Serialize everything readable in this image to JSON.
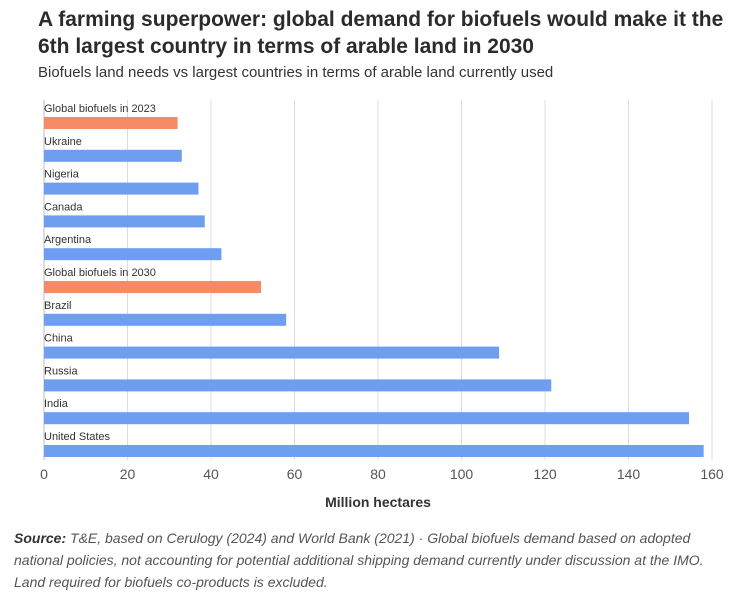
{
  "title": "A farming superpower: global demand for biofuels would make it the 6th largest country in terms of arable land in 2030",
  "subtitle": "Biofuels land needs vs largest countries in terms of arable land currently used",
  "footer": {
    "source_label": "Source:",
    "source_text": "T&E, based on Cerulogy (2024) and World Bank (2021) · Global biofuels demand based on adopted national policies, not accounting for potential additional shipping demand currently under discussion at the IMO. Land required for biofuels co-products is excluded."
  },
  "colors": {
    "country": "#6d9ef0",
    "biofuels": "#f58a65",
    "grid": "#dcdcdc",
    "axis_text": "#555555"
  },
  "chart_data": {
    "type": "bar",
    "orientation": "horizontal",
    "categories": [
      "Global biofuels in 2023",
      "Ukraine",
      "Nigeria",
      "Canada",
      "Argentina",
      "Global biofuels in 2030",
      "Brazil",
      "China",
      "Russia",
      "India",
      "United States"
    ],
    "values": [
      32,
      33,
      37,
      38.5,
      42.5,
      52,
      58,
      109,
      121.5,
      154.5,
      158
    ],
    "highlight": [
      true,
      false,
      false,
      false,
      false,
      true,
      false,
      false,
      false,
      false,
      false
    ],
    "xlabel": "Million hectares",
    "ylabel": "",
    "xlim": [
      0,
      160
    ],
    "xticks": [
      0,
      20,
      40,
      60,
      80,
      100,
      120,
      140,
      160
    ],
    "grid": true
  }
}
